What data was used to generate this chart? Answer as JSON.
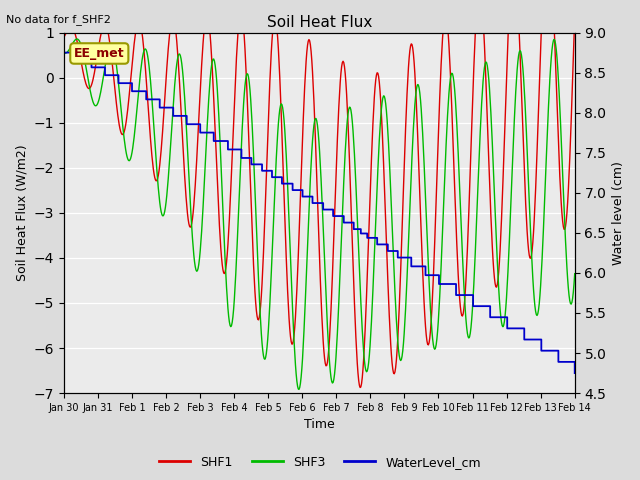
{
  "title": "Soil Heat Flux",
  "top_left_text": "No data for f_SHF2",
  "xlabel": "Time",
  "ylabel_left": "Soil Heat Flux (W/m2)",
  "ylabel_right": "Water level (cm)",
  "ylim_left": [
    -7.0,
    1.0
  ],
  "ylim_right": [
    4.5,
    9.0
  ],
  "annotation_box": "EE_met",
  "bg_color": "#dcdcdc",
  "plot_bg_color": "#ebebeb",
  "shf1_color": "#dd0000",
  "shf3_color": "#00bb00",
  "water_color": "#0000cc",
  "legend_entries": [
    "SHF1",
    "SHF3",
    "WaterLevel_cm"
  ],
  "xtick_labels": [
    "Jan 30",
    "Jan 31",
    "Feb 1",
    "Feb 2",
    "Feb 3",
    "Feb 4",
    "Feb 5",
    "Feb 6",
    "Feb 7",
    "Feb 8",
    "Feb 9",
    "Feb 10",
    "Feb 11",
    "Feb 12",
    "Feb 13",
    "Feb 14"
  ],
  "yticks_left": [
    -7.0,
    -6.0,
    -5.0,
    -4.0,
    -3.0,
    -2.0,
    -1.0,
    0.0,
    1.0
  ],
  "yticks_right": [
    4.5,
    5.0,
    5.5,
    6.0,
    6.5,
    7.0,
    7.5,
    8.0,
    8.5,
    9.0
  ],
  "figsize": [
    6.4,
    4.8
  ],
  "dpi": 100
}
